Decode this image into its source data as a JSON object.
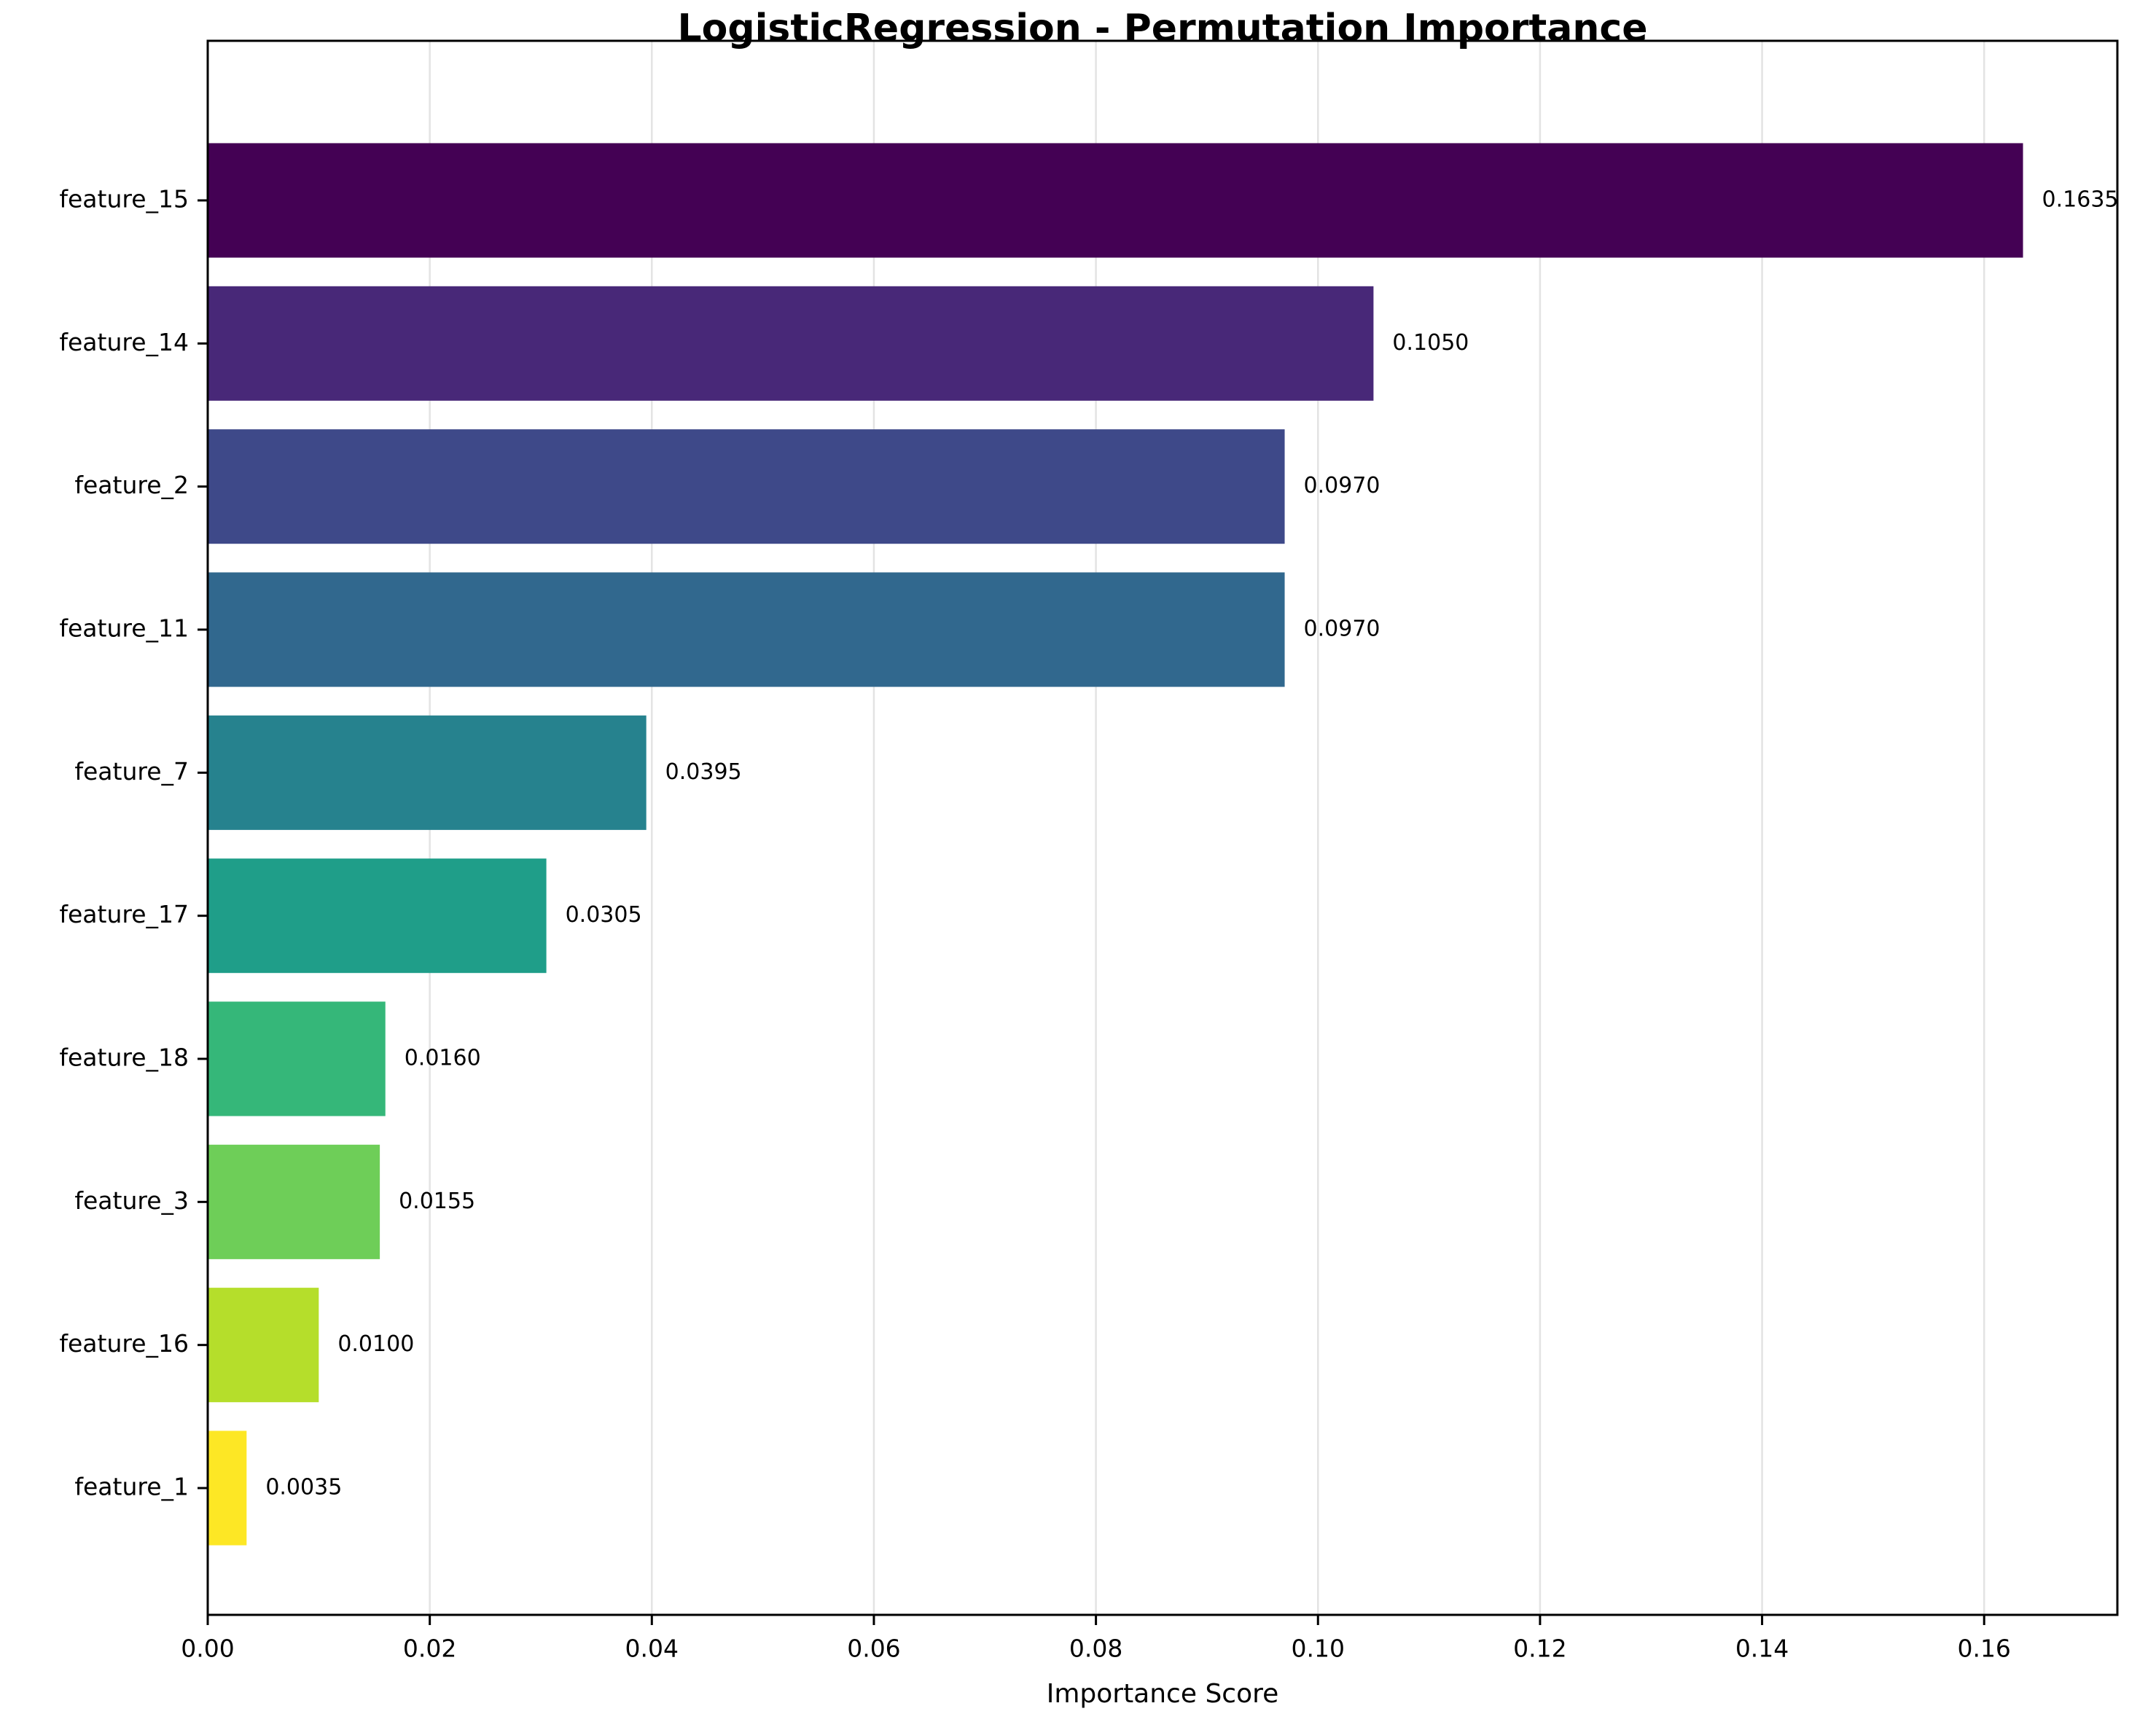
{
  "chart_data": {
    "type": "bar",
    "orientation": "horizontal",
    "title": "LogisticRegression - Permutation Importance",
    "xlabel": "Importance Score",
    "ylabel": "",
    "categories": [
      "feature_15",
      "feature_14",
      "feature_2",
      "feature_11",
      "feature_7",
      "feature_17",
      "feature_18",
      "feature_3",
      "feature_16",
      "feature_1"
    ],
    "values": [
      0.1635,
      0.105,
      0.097,
      0.097,
      0.0395,
      0.0305,
      0.016,
      0.0155,
      0.01,
      0.0035
    ],
    "value_labels": [
      "0.1635",
      "0.1050",
      "0.0970",
      "0.0970",
      "0.0395",
      "0.0305",
      "0.0160",
      "0.0155",
      "0.0100",
      "0.0035"
    ],
    "colors": [
      "#440154",
      "#482878",
      "#3e4989",
      "#31688e",
      "#26828e",
      "#1f9e89",
      "#35b779",
      "#6ece58",
      "#b5de2b",
      "#fde725"
    ],
    "xlim": [
      0,
      0.172
    ],
    "xticks": [
      0.0,
      0.02,
      0.04,
      0.06,
      0.08,
      0.1,
      0.12,
      0.14,
      0.16
    ],
    "xtick_labels": [
      "0.00",
      "0.02",
      "0.04",
      "0.06",
      "0.08",
      "0.10",
      "0.12",
      "0.14",
      "0.16"
    ],
    "grid": "x",
    "legend": "none"
  }
}
